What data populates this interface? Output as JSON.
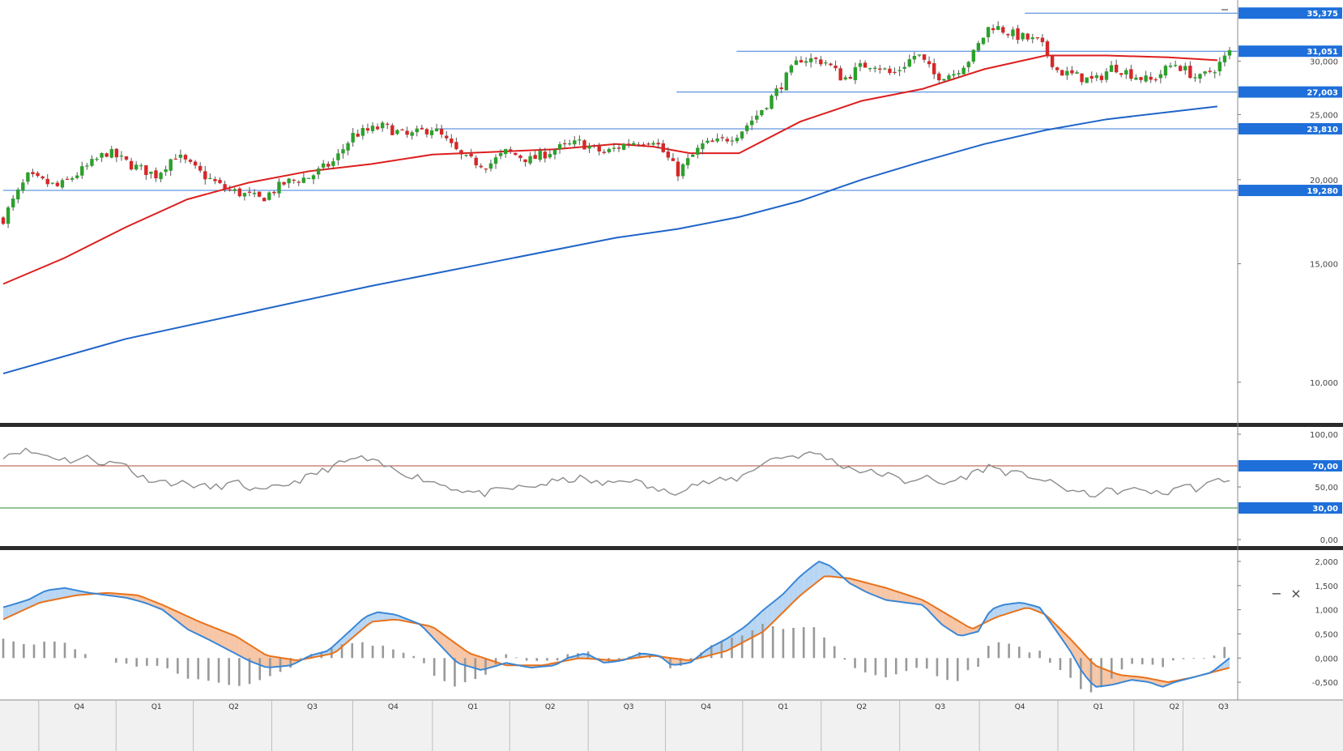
{
  "colors": {
    "up": "#2ca02c",
    "down": "#d62728",
    "ma_fast": "#dd1f1f",
    "ma_slow": "#1f64c8",
    "hline": "#3c7dd9",
    "badge": "#1e6fd9",
    "rsi_line": "#8c8c8c",
    "rsi_upper": "#b04a3a",
    "rsi_lower": "#2e8b2e",
    "macd_line": "#3a87d6",
    "signal_line": "#e8721c",
    "fill_up": "#b8d6f3",
    "fill_down": "#f6c6a6",
    "hist": "#999999"
  },
  "icons": {
    "minimize": "−",
    "close": "×"
  },
  "chart_data": [
    {
      "type": "candlestick",
      "panel": "price",
      "y_scale": "log",
      "ylim": [
        8700,
        37000
      ],
      "y_ticks": [
        {
          "value": 10000,
          "label": "10,000"
        },
        {
          "value": 15000,
          "label": "15,000"
        },
        {
          "value": 20000,
          "label": "20,000"
        },
        {
          "value": 25000,
          "label": "25,000"
        },
        {
          "value": 30000,
          "label": "30,000"
        }
      ],
      "price_levels": [
        {
          "value": 35375,
          "label": "35,375",
          "from": 0.833
        },
        {
          "value": 31051,
          "label": "31,051",
          "from": 0.598
        },
        {
          "value": 27003,
          "label": "27,003",
          "from": 0.549
        },
        {
          "value": 23810,
          "label": "23,810",
          "from": 0.352
        },
        {
          "value": 19280,
          "label": "19,280",
          "from": 0.0
        }
      ],
      "anchors": [
        [
          0,
          17500
        ],
        [
          0.02,
          20200
        ],
        [
          0.045,
          19500
        ],
        [
          0.07,
          21000
        ],
        [
          0.085,
          22000
        ],
        [
          0.105,
          21000
        ],
        [
          0.125,
          20300
        ],
        [
          0.14,
          21800
        ],
        [
          0.16,
          20500
        ],
        [
          0.18,
          19400
        ],
        [
          0.21,
          18700
        ],
        [
          0.23,
          19800
        ],
        [
          0.25,
          20200
        ],
        [
          0.27,
          21300
        ],
        [
          0.285,
          23300
        ],
        [
          0.31,
          24000
        ],
        [
          0.33,
          23200
        ],
        [
          0.35,
          23900
        ],
        [
          0.375,
          21500
        ],
        [
          0.395,
          21000
        ],
        [
          0.41,
          22000
        ],
        [
          0.43,
          21400
        ],
        [
          0.45,
          22200
        ],
        [
          0.47,
          22700
        ],
        [
          0.49,
          21900
        ],
        [
          0.51,
          22700
        ],
        [
          0.53,
          23000
        ],
        [
          0.55,
          20500
        ],
        [
          0.57,
          22500
        ],
        [
          0.585,
          22800
        ],
        [
          0.6,
          23500
        ],
        [
          0.615,
          25000
        ],
        [
          0.63,
          27000
        ],
        [
          0.65,
          30300
        ],
        [
          0.67,
          30000
        ],
        [
          0.685,
          28200
        ],
        [
          0.7,
          29500
        ],
        [
          0.71,
          29800
        ],
        [
          0.725,
          28600
        ],
        [
          0.745,
          30800
        ],
        [
          0.76,
          28500
        ],
        [
          0.775,
          28800
        ],
        [
          0.79,
          30500
        ],
        [
          0.805,
          34000
        ],
        [
          0.825,
          32800
        ],
        [
          0.845,
          32000
        ],
        [
          0.86,
          29000
        ],
        [
          0.875,
          28500
        ],
        [
          0.89,
          28000
        ],
        [
          0.905,
          29500
        ],
        [
          0.92,
          28700
        ],
        [
          0.935,
          28000
        ],
        [
          0.955,
          29800
        ],
        [
          0.975,
          28200
        ],
        [
          0.99,
          29500
        ],
        [
          1.0,
          30900
        ]
      ],
      "moving_averages": [
        {
          "color_key": "ma_fast",
          "points": [
            [
              0,
              14000
            ],
            [
              0.05,
              15300
            ],
            [
              0.1,
              17000
            ],
            [
              0.15,
              18700
            ],
            [
              0.2,
              19800
            ],
            [
              0.25,
              20600
            ],
            [
              0.3,
              21100
            ],
            [
              0.35,
              21800
            ],
            [
              0.4,
              22000
            ],
            [
              0.45,
              22200
            ],
            [
              0.5,
              22600
            ],
            [
              0.53,
              22400
            ],
            [
              0.56,
              21900
            ],
            [
              0.6,
              21900
            ],
            [
              0.65,
              24400
            ],
            [
              0.7,
              26200
            ],
            [
              0.75,
              27300
            ],
            [
              0.8,
              29200
            ],
            [
              0.85,
              30600
            ],
            [
              0.9,
              30600
            ],
            [
              0.95,
              30400
            ],
            [
              0.99,
              30100
            ]
          ]
        },
        {
          "color_key": "ma_slow",
          "points": [
            [
              0,
              10300
            ],
            [
              0.1,
              11600
            ],
            [
              0.2,
              12700
            ],
            [
              0.3,
              13900
            ],
            [
              0.4,
              15100
            ],
            [
              0.5,
              16400
            ],
            [
              0.55,
              16900
            ],
            [
              0.6,
              17600
            ],
            [
              0.65,
              18600
            ],
            [
              0.7,
              20000
            ],
            [
              0.75,
              21300
            ],
            [
              0.8,
              22600
            ],
            [
              0.85,
              23700
            ],
            [
              0.9,
              24600
            ],
            [
              0.99,
              25700
            ]
          ]
        }
      ]
    },
    {
      "type": "line",
      "panel": "rsi",
      "ylim": [
        0,
        100
      ],
      "y_ticks": [
        {
          "value": 0,
          "label": "0,00"
        },
        {
          "value": 50,
          "label": "50,00"
        },
        {
          "value": 100,
          "label": "100,00"
        }
      ],
      "levels": [
        {
          "value": 70,
          "label": "70,00",
          "color_key": "rsi_upper"
        },
        {
          "value": 30,
          "label": "30,00",
          "color_key": "rsi_lower"
        }
      ],
      "anchors": [
        [
          0,
          80
        ],
        [
          0.015,
          85
        ],
        [
          0.035,
          80
        ],
        [
          0.055,
          75
        ],
        [
          0.07,
          78
        ],
        [
          0.08,
          73
        ],
        [
          0.1,
          72
        ],
        [
          0.11,
          60
        ],
        [
          0.13,
          55
        ],
        [
          0.15,
          53
        ],
        [
          0.17,
          49
        ],
        [
          0.19,
          54
        ],
        [
          0.21,
          45
        ],
        [
          0.23,
          52
        ],
        [
          0.25,
          60
        ],
        [
          0.27,
          70
        ],
        [
          0.29,
          78
        ],
        [
          0.31,
          70
        ],
        [
          0.33,
          62
        ],
        [
          0.35,
          55
        ],
        [
          0.37,
          48
        ],
        [
          0.39,
          43
        ],
        [
          0.41,
          48
        ],
        [
          0.43,
          50
        ],
        [
          0.45,
          55
        ],
        [
          0.47,
          58
        ],
        [
          0.49,
          52
        ],
        [
          0.51,
          58
        ],
        [
          0.53,
          48
        ],
        [
          0.545,
          44
        ],
        [
          0.56,
          52
        ],
        [
          0.58,
          55
        ],
        [
          0.6,
          58
        ],
        [
          0.615,
          70
        ],
        [
          0.63,
          78
        ],
        [
          0.65,
          80
        ],
        [
          0.665,
          82
        ],
        [
          0.68,
          72
        ],
        [
          0.7,
          65
        ],
        [
          0.72,
          62
        ],
        [
          0.735,
          55
        ],
        [
          0.75,
          60
        ],
        [
          0.765,
          52
        ],
        [
          0.78,
          58
        ],
        [
          0.795,
          65
        ],
        [
          0.805,
          70
        ],
        [
          0.82,
          63
        ],
        [
          0.84,
          60
        ],
        [
          0.855,
          53
        ],
        [
          0.87,
          47
        ],
        [
          0.885,
          42
        ],
        [
          0.9,
          46
        ],
        [
          0.915,
          46
        ],
        [
          0.93,
          48
        ],
        [
          0.945,
          42
        ],
        [
          0.96,
          52
        ],
        [
          0.975,
          48
        ],
        [
          0.99,
          56
        ],
        [
          1.0,
          58
        ]
      ]
    },
    {
      "type": "macd",
      "panel": "macd",
      "ylim": [
        -0.8,
        2.1
      ],
      "y_ticks": [
        {
          "value": -0.5,
          "label": "-0,500"
        },
        {
          "value": 0,
          "label": "0,000"
        },
        {
          "value": 0.5,
          "label": "0,500"
        },
        {
          "value": 1.0,
          "label": "1,000"
        },
        {
          "value": 1.5,
          "label": "1,500"
        },
        {
          "value": 2.0,
          "label": "2,000"
        }
      ],
      "macd": [
        [
          0,
          1.05
        ],
        [
          0.02,
          1.2
        ],
        [
          0.035,
          1.4
        ],
        [
          0.05,
          1.45
        ],
        [
          0.07,
          1.35
        ],
        [
          0.085,
          1.3
        ],
        [
          0.1,
          1.25
        ],
        [
          0.115,
          1.15
        ],
        [
          0.13,
          1.0
        ],
        [
          0.15,
          0.6
        ],
        [
          0.17,
          0.35
        ],
        [
          0.185,
          0.15
        ],
        [
          0.2,
          -0.05
        ],
        [
          0.215,
          -0.2
        ],
        [
          0.235,
          -0.15
        ],
        [
          0.25,
          0.05
        ],
        [
          0.265,
          0.15
        ],
        [
          0.28,
          0.5
        ],
        [
          0.295,
          0.85
        ],
        [
          0.305,
          0.95
        ],
        [
          0.32,
          0.9
        ],
        [
          0.34,
          0.7
        ],
        [
          0.355,
          0.3
        ],
        [
          0.37,
          -0.1
        ],
        [
          0.39,
          -0.25
        ],
        [
          0.41,
          -0.1
        ],
        [
          0.43,
          -0.2
        ],
        [
          0.45,
          -0.15
        ],
        [
          0.46,
          0.0
        ],
        [
          0.475,
          0.1
        ],
        [
          0.49,
          -0.1
        ],
        [
          0.505,
          -0.05
        ],
        [
          0.52,
          0.1
        ],
        [
          0.535,
          0.05
        ],
        [
          0.545,
          -0.15
        ],
        [
          0.56,
          -0.1
        ],
        [
          0.575,
          0.2
        ],
        [
          0.59,
          0.4
        ],
        [
          0.605,
          0.65
        ],
        [
          0.62,
          1.0
        ],
        [
          0.635,
          1.3
        ],
        [
          0.65,
          1.7
        ],
        [
          0.665,
          2.0
        ],
        [
          0.675,
          1.9
        ],
        [
          0.69,
          1.55
        ],
        [
          0.705,
          1.35
        ],
        [
          0.72,
          1.2
        ],
        [
          0.735,
          1.15
        ],
        [
          0.75,
          1.1
        ],
        [
          0.765,
          0.7
        ],
        [
          0.78,
          0.45
        ],
        [
          0.795,
          0.55
        ],
        [
          0.805,
          1.0
        ],
        [
          0.815,
          1.1
        ],
        [
          0.83,
          1.15
        ],
        [
          0.845,
          1.05
        ],
        [
          0.855,
          0.7
        ],
        [
          0.87,
          0.15
        ],
        [
          0.88,
          -0.3
        ],
        [
          0.89,
          -0.6
        ],
        [
          0.905,
          -0.55
        ],
        [
          0.92,
          -0.45
        ],
        [
          0.935,
          -0.5
        ],
        [
          0.945,
          -0.6
        ],
        [
          0.955,
          -0.5
        ],
        [
          0.97,
          -0.4
        ],
        [
          0.985,
          -0.3
        ],
        [
          1.0,
          0.0
        ]
      ],
      "signal": [
        [
          0,
          0.8
        ],
        [
          0.03,
          1.15
        ],
        [
          0.06,
          1.3
        ],
        [
          0.085,
          1.35
        ],
        [
          0.11,
          1.3
        ],
        [
          0.13,
          1.1
        ],
        [
          0.16,
          0.75
        ],
        [
          0.19,
          0.45
        ],
        [
          0.215,
          0.05
        ],
        [
          0.24,
          -0.05
        ],
        [
          0.27,
          0.1
        ],
        [
          0.3,
          0.75
        ],
        [
          0.32,
          0.8
        ],
        [
          0.35,
          0.65
        ],
        [
          0.38,
          0.1
        ],
        [
          0.41,
          -0.15
        ],
        [
          0.44,
          -0.15
        ],
        [
          0.47,
          0.0
        ],
        [
          0.5,
          -0.05
        ],
        [
          0.53,
          0.05
        ],
        [
          0.56,
          -0.05
        ],
        [
          0.59,
          0.15
        ],
        [
          0.62,
          0.55
        ],
        [
          0.65,
          1.3
        ],
        [
          0.67,
          1.7
        ],
        [
          0.69,
          1.65
        ],
        [
          0.72,
          1.45
        ],
        [
          0.75,
          1.2
        ],
        [
          0.77,
          0.9
        ],
        [
          0.79,
          0.6
        ],
        [
          0.81,
          0.85
        ],
        [
          0.835,
          1.05
        ],
        [
          0.85,
          0.9
        ],
        [
          0.87,
          0.4
        ],
        [
          0.89,
          -0.15
        ],
        [
          0.91,
          -0.35
        ],
        [
          0.93,
          -0.4
        ],
        [
          0.95,
          -0.5
        ],
        [
          0.97,
          -0.4
        ],
        [
          1.0,
          -0.2
        ]
      ],
      "hist_gap": [
        0.068,
        0.085
      ]
    }
  ],
  "x_axis": {
    "labels": [
      {
        "pos": 0.062,
        "label": "Q4"
      },
      {
        "pos": 0.125,
        "label": "Q1"
      },
      {
        "pos": 0.188,
        "label": "Q2"
      },
      {
        "pos": 0.252,
        "label": "Q3"
      },
      {
        "pos": 0.318,
        "label": "Q4"
      },
      {
        "pos": 0.383,
        "label": "Q1"
      },
      {
        "pos": 0.446,
        "label": "Q2"
      },
      {
        "pos": 0.51,
        "label": "Q3"
      },
      {
        "pos": 0.573,
        "label": "Q4"
      },
      {
        "pos": 0.636,
        "label": "Q1"
      },
      {
        "pos": 0.7,
        "label": "Q2"
      },
      {
        "pos": 0.764,
        "label": "Q3"
      },
      {
        "pos": 0.829,
        "label": "Q4"
      },
      {
        "pos": 0.893,
        "label": "Q1"
      },
      {
        "pos": 0.955,
        "label": "Q2"
      },
      {
        "pos": 0.995,
        "label": "Q3"
      }
    ]
  }
}
